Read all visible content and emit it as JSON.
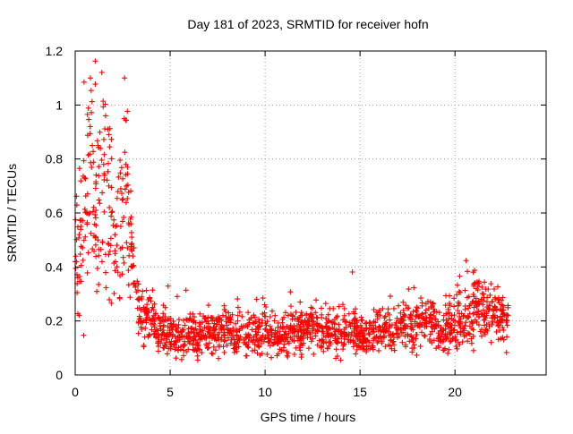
{
  "chart_data": {
    "type": "scatter",
    "title": "Day 181 of 2023, SRMTID for receiver hofn",
    "xlabel": "GPS time / hours",
    "ylabel": "SRMTID / TECUs",
    "xlim": [
      0,
      24.8
    ],
    "ylim": [
      0,
      1.2
    ],
    "xticks": [
      0,
      5,
      10,
      15,
      20
    ],
    "xtick_labels": [
      "0",
      "5",
      "10",
      "15",
      "20"
    ],
    "yticks": [
      0,
      0.2,
      0.4,
      0.6,
      0.8,
      1,
      1.2
    ],
    "ytick_labels": [
      "0",
      "0.2",
      "0.4",
      "0.6",
      "0.8",
      "1",
      "1.2"
    ],
    "grid": true,
    "marker": "+",
    "color": "#ff0000",
    "series": [
      {
        "name": "SRMTID",
        "x": [
          0.0,
          0.3,
          0.6,
          0.9,
          1.2,
          1.5,
          1.8,
          2.1,
          2.4,
          2.7,
          3.0,
          3.3,
          3.6,
          4.0,
          4.5,
          5.0,
          5.5,
          6.0,
          6.5,
          7.0,
          7.5,
          8.0,
          8.5,
          9.0,
          9.5,
          10.0,
          10.5,
          11.0,
          11.5,
          12.0,
          12.5,
          13.0,
          13.5,
          14.0,
          14.5,
          15.0,
          15.5,
          16.0,
          16.5,
          17.0,
          17.5,
          18.0,
          18.5,
          19.0,
          19.5,
          20.0,
          20.5,
          21.0,
          21.5,
          22.0,
          22.5,
          22.8,
          0.8,
          0.5,
          1.6,
          2.6
        ],
        "y": [
          0.42,
          0.55,
          0.6,
          0.85,
          0.5,
          0.78,
          0.62,
          0.45,
          0.55,
          0.7,
          0.4,
          0.28,
          0.25,
          0.2,
          0.17,
          0.15,
          0.13,
          0.14,
          0.15,
          0.16,
          0.15,
          0.17,
          0.16,
          0.15,
          0.16,
          0.17,
          0.14,
          0.15,
          0.16,
          0.18,
          0.17,
          0.16,
          0.15,
          0.16,
          0.18,
          0.14,
          0.15,
          0.18,
          0.16,
          0.17,
          0.18,
          0.19,
          0.21,
          0.18,
          0.17,
          0.2,
          0.22,
          0.25,
          0.24,
          0.22,
          0.2,
          0.22,
          1.1,
          0.73,
          0.96,
          1.1
        ]
      }
    ]
  }
}
